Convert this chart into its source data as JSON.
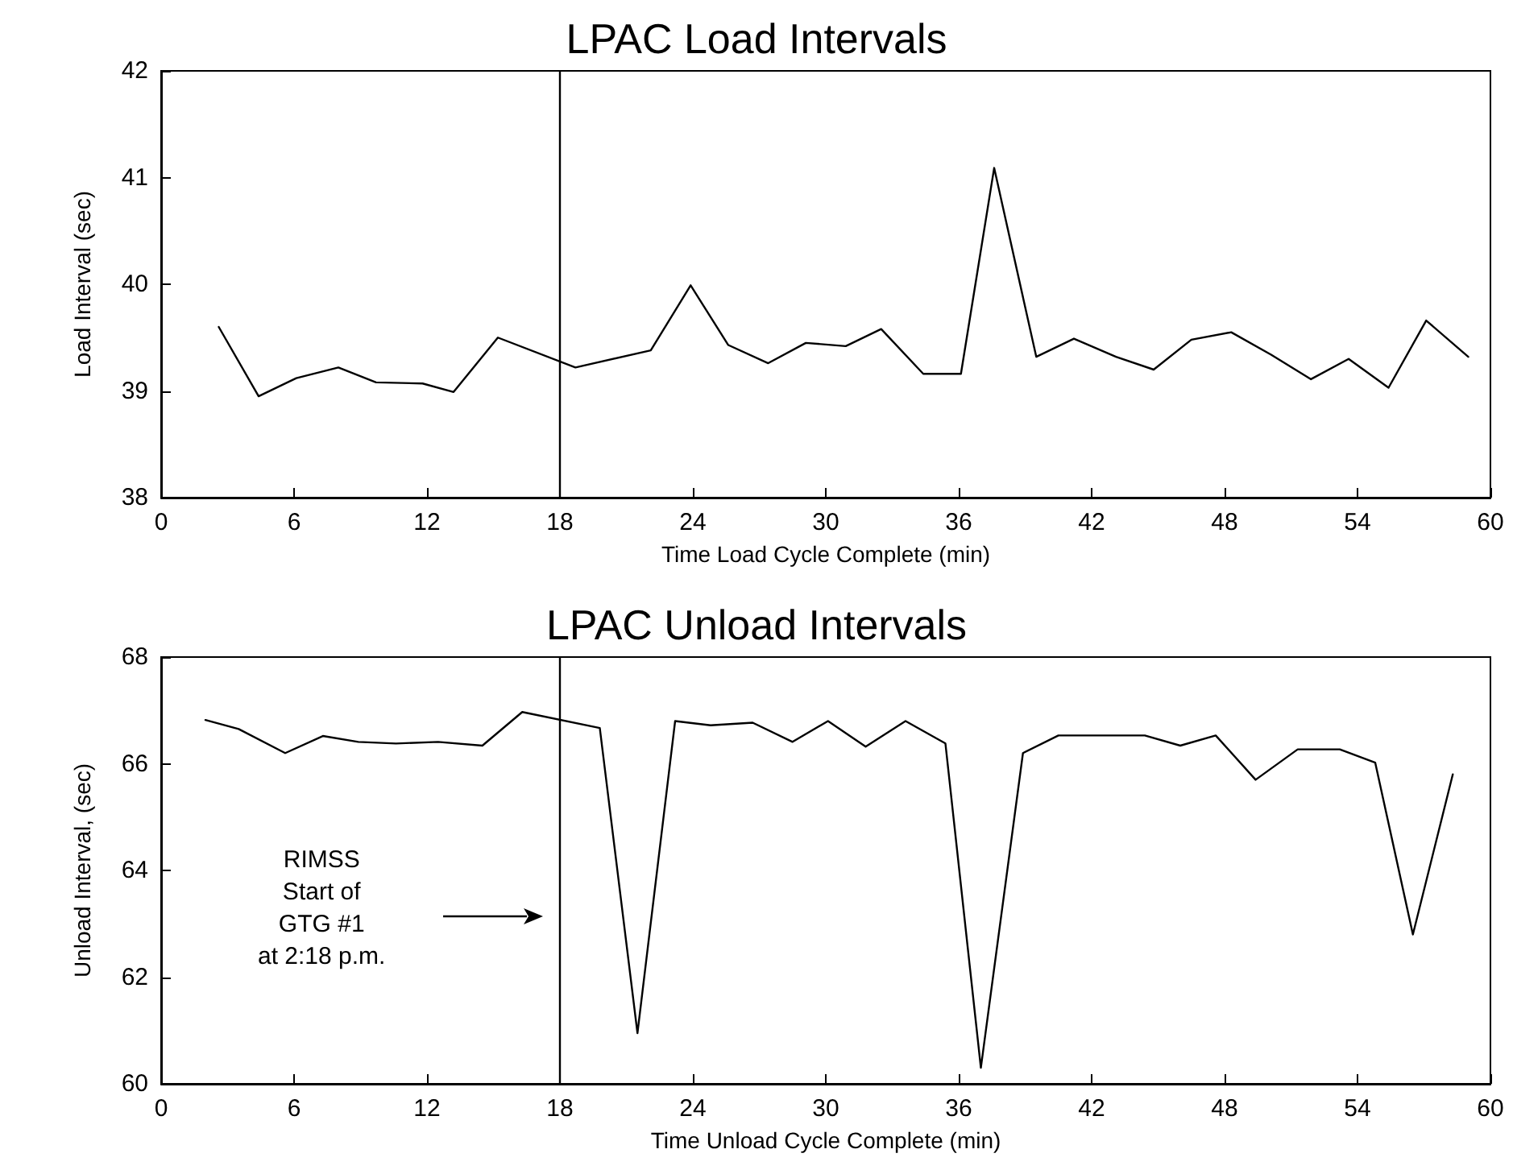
{
  "chart_data": [
    {
      "type": "line",
      "title": "LPAC Load Intervals",
      "xlabel": "Time Load Cycle Complete (min)",
      "ylabel": "Load Interval (sec)",
      "x": [
        2.6,
        4.4,
        6.1,
        8.0,
        9.7,
        11.8,
        13.2,
        15.2,
        18.7,
        22.1,
        23.9,
        25.6,
        27.4,
        29.1,
        30.9,
        32.5,
        34.4,
        36.1,
        37.6,
        39.5,
        41.2,
        43.1,
        44.8,
        46.5,
        48.3,
        50.1,
        51.9,
        53.6,
        55.4,
        57.1,
        59.0
      ],
      "series": [
        {
          "color": "#000000",
          "values": [
            39.6,
            38.95,
            39.12,
            39.22,
            39.08,
            39.07,
            38.99,
            39.5,
            39.22,
            39.38,
            39.99,
            39.43,
            39.26,
            39.45,
            39.42,
            39.58,
            39.16,
            39.16,
            41.09,
            39.32,
            39.49,
            39.32,
            39.2,
            39.48,
            39.55,
            39.34,
            39.11,
            39.3,
            39.03,
            39.66,
            39.32
          ]
        }
      ],
      "xlim": [
        0,
        60
      ],
      "xticks": [
        0,
        6,
        12,
        18,
        24,
        30,
        36,
        42,
        48,
        54,
        60
      ],
      "ylim": [
        38,
        42
      ],
      "yticks": [
        38,
        39,
        40,
        41,
        42
      ],
      "ref_lines": [
        {
          "axis": "x",
          "value": 18,
          "color": "#000000"
        }
      ],
      "grid": false,
      "marker": "none",
      "line_style": "solid"
    },
    {
      "type": "line",
      "title": "LPAC Unload Intervals",
      "xlabel": "Time Unload Cycle Complete (min)",
      "ylabel": "Unload Interval, (sec)",
      "x": [
        2.0,
        3.5,
        5.6,
        7.3,
        8.9,
        10.6,
        12.5,
        14.5,
        16.3,
        19.8,
        21.5,
        23.2,
        24.8,
        26.7,
        28.5,
        30.1,
        31.8,
        33.6,
        35.4,
        37.0,
        38.9,
        40.5,
        42.5,
        44.4,
        46.0,
        47.6,
        49.4,
        51.3,
        53.2,
        54.8,
        56.5,
        58.3
      ],
      "series": [
        {
          "color": "#000000",
          "values": [
            66.82,
            66.65,
            66.2,
            66.52,
            66.41,
            66.38,
            66.41,
            66.34,
            66.97,
            66.67,
            60.95,
            66.8,
            66.72,
            66.77,
            66.41,
            66.8,
            66.32,
            66.8,
            66.38,
            60.3,
            66.2,
            66.53,
            66.53,
            66.53,
            66.34,
            66.53,
            65.7,
            66.27,
            66.27,
            66.02,
            62.8,
            65.8
          ]
        }
      ],
      "xlim": [
        0,
        60
      ],
      "xticks": [
        0,
        6,
        12,
        18,
        24,
        30,
        36,
        42,
        48,
        54,
        60
      ],
      "ylim": [
        60,
        68
      ],
      "yticks": [
        60,
        62,
        64,
        66,
        68
      ],
      "ref_lines": [
        {
          "axis": "x",
          "value": 18,
          "color": "#000000"
        }
      ],
      "annotations": [
        "RIMSS\nStart of\nGTG #1\nat 2:18 p.m."
      ],
      "grid": false,
      "marker": "none",
      "line_style": "solid"
    }
  ]
}
